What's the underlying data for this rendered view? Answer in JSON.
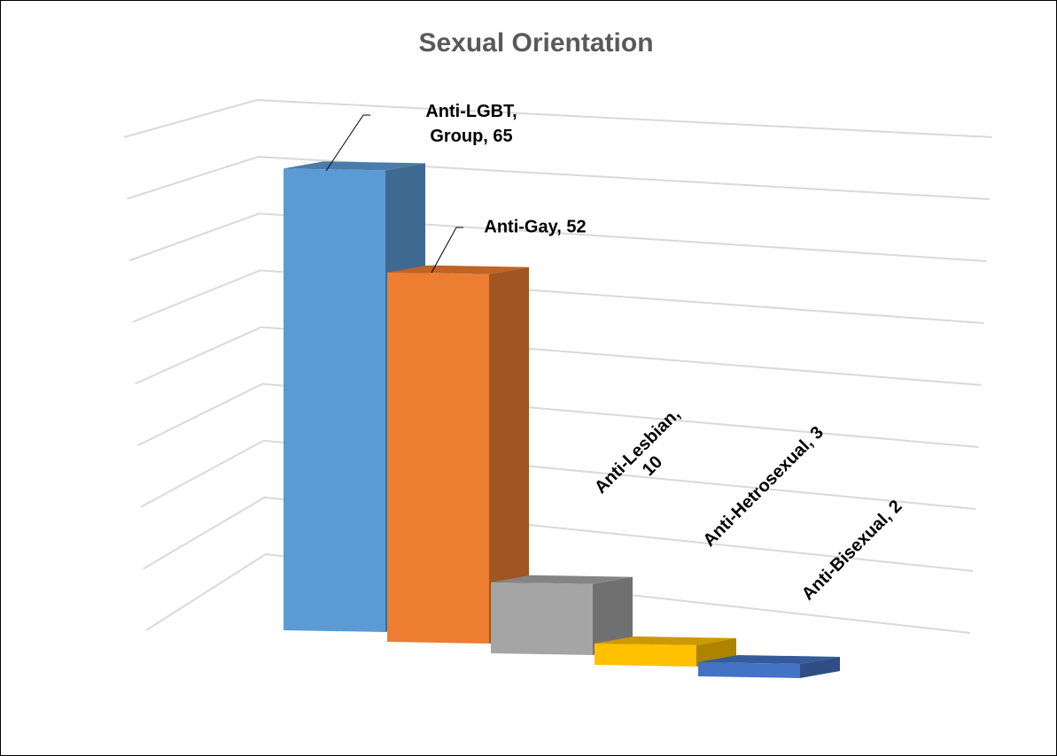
{
  "chart_data": {
    "type": "bar3d",
    "title": "Sexual Orientation",
    "values": [
      65,
      52,
      10,
      3,
      2
    ],
    "value_labels": [
      "Anti-LGBT, Group, 65",
      "Anti-Gay, 52",
      "Anti-Lesbian, 10",
      "Anti-Hetrosexual, 3",
      "Anti-Bisexual, 2"
    ],
    "colors": [
      "#5b9bd5",
      "#ed7d31",
      "#a5a5a5",
      "#ffc000",
      "#4472c4"
    ],
    "ylim": [
      0,
      80
    ],
    "yticks": [
      0,
      10,
      20,
      30,
      40,
      50,
      60,
      70,
      80
    ],
    "grid": true
  }
}
